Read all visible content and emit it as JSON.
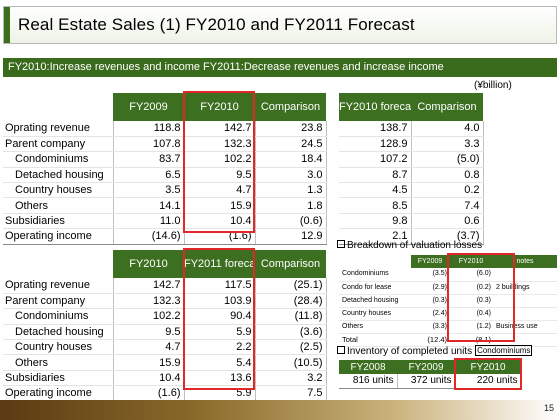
{
  "title": "Real Estate Sales (1) FY2010 and FY2011 Forecast",
  "banner": "FY2010:Increase revenues and income  FY2011:Decrease revenues and increase income",
  "unit_note": "(¥billion)",
  "top_table": {
    "headers": [
      "FY2009",
      "FY2010",
      "Comparison"
    ],
    "rows": [
      {
        "label": "Oprating revenue",
        "v1": "118.8",
        "v2": "142.7",
        "cmp": "23.8"
      },
      {
        "label": "Parent company",
        "v1": "107.8",
        "v2": "132.3",
        "cmp": "24.5"
      },
      {
        "label": "Condominiums",
        "v1": "83.7",
        "v2": "102.2",
        "cmp": "18.4"
      },
      {
        "label": "Detached housing",
        "v1": "6.5",
        "v2": "9.5",
        "cmp": "3.0"
      },
      {
        "label": "Country houses",
        "v1": "3.5",
        "v2": "4.7",
        "cmp": "1.3"
      },
      {
        "label": "Others",
        "v1": "14.1",
        "v2": "15.9",
        "cmp": "1.8"
      },
      {
        "label": "Subsidiaries",
        "v1": "11.0",
        "v2": "10.4",
        "cmp": "(0.6)"
      },
      {
        "label": "Operating income",
        "v1": "(14.6)",
        "v2": "(1.6)",
        "cmp": "12.9"
      }
    ]
  },
  "forecast_table": {
    "headers": [
      "FY2010 forecast",
      "Comparison"
    ],
    "rows": [
      {
        "f": "138.7",
        "cmp": "4.0"
      },
      {
        "f": "128.9",
        "cmp": "3.3"
      },
      {
        "f": "107.2",
        "cmp": "(5.0)"
      },
      {
        "f": "8.7",
        "cmp": "0.8"
      },
      {
        "f": "4.5",
        "cmp": "0.2"
      },
      {
        "f": "8.5",
        "cmp": "7.4"
      },
      {
        "f": "9.8",
        "cmp": "0.6"
      },
      {
        "f": "2.1",
        "cmp": "(3.7)"
      }
    ]
  },
  "bottom_table": {
    "headers": [
      "FY2010",
      "FY2011 forecast",
      "Comparison"
    ],
    "rows": [
      {
        "label": "Oprating revenue",
        "v1": "142.7",
        "v2": "117.5",
        "cmp": "(25.1)"
      },
      {
        "label": "Parent company",
        "v1": "132.3",
        "v2": "103.9",
        "cmp": "(28.4)"
      },
      {
        "label": "Condominiums",
        "v1": "102.2",
        "v2": "90.4",
        "cmp": "(11.8)"
      },
      {
        "label": "Detached housing",
        "v1": "9.5",
        "v2": "5.9",
        "cmp": "(3.6)"
      },
      {
        "label": "Country houses",
        "v1": "4.7",
        "v2": "2.2",
        "cmp": "(2.5)"
      },
      {
        "label": "Others",
        "v1": "15.9",
        "v2": "5.4",
        "cmp": "(10.5)"
      },
      {
        "label": "Subsidiaries",
        "v1": "10.4",
        "v2": "13.6",
        "cmp": "3.2"
      },
      {
        "label": "Operating income",
        "v1": "(1.6)",
        "v2": "5.9",
        "cmp": "7.5"
      }
    ]
  },
  "valuation": {
    "section_title": "Breakdown of valuation losses",
    "headers": [
      "FY2009",
      "FY2010",
      "notes"
    ],
    "rows": [
      {
        "label": "Condominiums",
        "v1": "(3.5)",
        "v2": "(6.0)",
        "note": ""
      },
      {
        "label": "Condo for lease",
        "v1": "(2.9)",
        "v2": "(0.2)",
        "note": "2 buildings"
      },
      {
        "label": "Detached housing",
        "v1": "(0.3)",
        "v2": "(0.3)",
        "note": ""
      },
      {
        "label": "Country houses",
        "v1": "(2.4)",
        "v2": "(0.4)",
        "note": ""
      },
      {
        "label": "Others",
        "v1": "(3.3)",
        "v2": "(1.2)",
        "note": "Business use"
      }
    ],
    "total": {
      "label": "Total",
      "v1": "(12.4)",
      "v2": "(8.1)"
    }
  },
  "inventory": {
    "section_title": "Inventory of completed units",
    "tag": "Condominiums",
    "headers": [
      "FY2008",
      "FY2009",
      "FY2010"
    ],
    "values": [
      "816 units",
      "372 units",
      "220 units"
    ]
  },
  "page_number": "15",
  "colors": {
    "header_green": "#3c6f1f",
    "highlight_red": "#e02828"
  }
}
